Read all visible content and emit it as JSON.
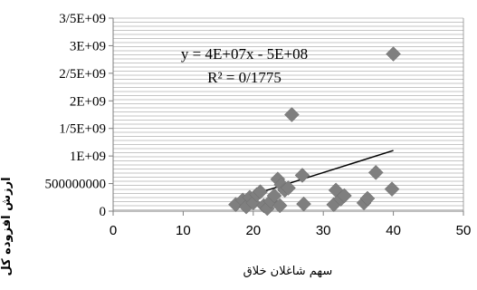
{
  "chart_data": {
    "type": "scatter",
    "xlabel": "سهم شاغلان خلاق",
    "ylabel": "ارزش افزوده کل",
    "xlim": [
      0,
      50
    ],
    "ylim": [
      0,
      3500000000
    ],
    "x_ticks": [
      "0",
      "10",
      "20",
      "30",
      "40",
      "50"
    ],
    "y_ticks": [
      "0",
      "500000000",
      "1E+09",
      "1/5E+09",
      "2E+09",
      "2/5E+09",
      "3E+09",
      "3/5E+09"
    ],
    "grid": true,
    "marker_color": "#7f7f7f",
    "trendline_color": "#000000",
    "annotations": {
      "equation": "y = 4E+07x - 5E+08",
      "r_squared": "R² = 0/1775"
    },
    "trendline": {
      "slope": 40000000,
      "intercept": -500000000
    },
    "points": [
      {
        "x": 17.5,
        "y": 120000000
      },
      {
        "x": 18.5,
        "y": 200000000
      },
      {
        "x": 19.0,
        "y": 80000000
      },
      {
        "x": 19.5,
        "y": 250000000
      },
      {
        "x": 20.0,
        "y": 150000000
      },
      {
        "x": 20.5,
        "y": 300000000
      },
      {
        "x": 21.0,
        "y": 350000000
      },
      {
        "x": 21.5,
        "y": 100000000
      },
      {
        "x": 22.0,
        "y": 50000000
      },
      {
        "x": 22.5,
        "y": 180000000
      },
      {
        "x": 23.0,
        "y": 280000000
      },
      {
        "x": 23.5,
        "y": 580000000
      },
      {
        "x": 23.8,
        "y": 100000000
      },
      {
        "x": 24.0,
        "y": 480000000
      },
      {
        "x": 24.5,
        "y": 380000000
      },
      {
        "x": 25.0,
        "y": 420000000
      },
      {
        "x": 25.5,
        "y": 1750000000
      },
      {
        "x": 27.0,
        "y": 650000000
      },
      {
        "x": 27.2,
        "y": 130000000
      },
      {
        "x": 31.5,
        "y": 120000000
      },
      {
        "x": 31.8,
        "y": 380000000
      },
      {
        "x": 32.5,
        "y": 220000000
      },
      {
        "x": 33.0,
        "y": 280000000
      },
      {
        "x": 35.8,
        "y": 150000000
      },
      {
        "x": 36.3,
        "y": 230000000
      },
      {
        "x": 37.5,
        "y": 700000000
      },
      {
        "x": 39.8,
        "y": 400000000
      },
      {
        "x": 40.0,
        "y": 2850000000
      }
    ]
  }
}
